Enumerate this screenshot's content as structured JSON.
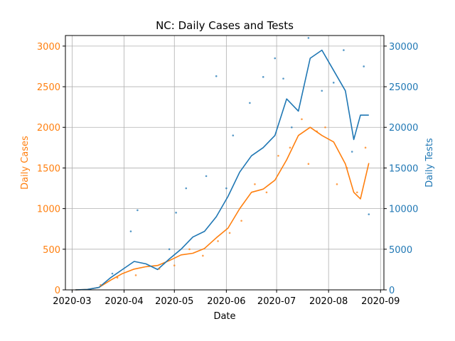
{
  "chart_data": {
    "type": "line",
    "title": "NC: Daily Cases and Tests",
    "xlabel": "Date",
    "ylabel_left": "Daily Cases",
    "ylabel_right": "Daily Tests",
    "grid": true,
    "xlim": [
      "2020-02-26",
      "2020-09-03"
    ],
    "ylim_left": [
      0,
      3130
    ],
    "ylim_right": [
      0,
      31300
    ],
    "x_ticks": [
      "2020-03",
      "2020-04",
      "2020-05",
      "2020-06",
      "2020-07",
      "2020-08",
      "2020-09"
    ],
    "y_ticks_left": [
      "0",
      "500",
      "1000",
      "1500",
      "2000",
      "2500",
      "3000"
    ],
    "y_ticks_right": [
      "0",
      "5000",
      "10000",
      "15000",
      "20000",
      "25000",
      "30000"
    ],
    "colors": {
      "cases": "#ff7f0e",
      "tests": "#1f77b4",
      "grid": "#b0b0b0"
    },
    "series": [
      {
        "axis": "left",
        "style": "line",
        "x": [
          "2020-03-03",
          "2020-03-10",
          "2020-03-17",
          "2020-03-24",
          "2020-03-31",
          "2020-04-07",
          "2020-04-14",
          "2020-04-21",
          "2020-04-28",
          "2020-05-05",
          "2020-05-12",
          "2020-05-19",
          "2020-05-26",
          "2020-06-02",
          "2020-06-09",
          "2020-06-16",
          "2020-06-23",
          "2020-06-30",
          "2020-07-07",
          "2020-07-14",
          "2020-07-21",
          "2020-07-28",
          "2020-08-04",
          "2020-08-11",
          "2020-08-16",
          "2020-08-20",
          "2020-08-25"
        ],
        "values": [
          0,
          5,
          30,
          120,
          200,
          255,
          285,
          300,
          360,
          430,
          450,
          510,
          640,
          760,
          1000,
          1200,
          1240,
          1350,
          1600,
          1900,
          2000,
          1900,
          1820,
          1550,
          1200,
          1120,
          1560
        ]
      },
      {
        "axis": "right",
        "style": "line",
        "x": [
          "2020-03-03",
          "2020-03-10",
          "2020-03-17",
          "2020-03-24",
          "2020-03-31",
          "2020-04-07",
          "2020-04-14",
          "2020-04-21",
          "2020-04-28",
          "2020-05-05",
          "2020-05-12",
          "2020-05-19",
          "2020-05-26",
          "2020-06-02",
          "2020-06-09",
          "2020-06-16",
          "2020-06-23",
          "2020-06-30",
          "2020-07-07",
          "2020-07-14",
          "2020-07-21",
          "2020-07-28",
          "2020-08-04",
          "2020-08-11",
          "2020-08-16",
          "2020-08-20",
          "2020-08-25"
        ],
        "values": [
          0,
          50,
          300,
          1500,
          2500,
          3500,
          3200,
          2500,
          3800,
          5000,
          6500,
          7200,
          9000,
          11500,
          14500,
          16500,
          17500,
          19000,
          23500,
          22000,
          28500,
          29500,
          27000,
          24500,
          18500,
          21500,
          21500
        ]
      },
      {
        "axis": "left",
        "style": "scatter",
        "x": [
          "2020-03-18",
          "2020-03-28",
          "2020-04-08",
          "2020-04-22",
          "2020-05-01",
          "2020-05-10",
          "2020-05-18",
          "2020-05-27",
          "2020-06-03",
          "2020-06-10",
          "2020-06-18",
          "2020-06-25",
          "2020-07-02",
          "2020-07-09",
          "2020-07-16",
          "2020-07-20",
          "2020-07-25",
          "2020-07-30",
          "2020-08-06",
          "2020-08-12",
          "2020-08-18",
          "2020-08-23"
        ],
        "values": [
          60,
          150,
          180,
          260,
          300,
          500,
          420,
          600,
          700,
          850,
          1300,
          1200,
          1650,
          1750,
          2100,
          1550,
          1950,
          2000,
          1300,
          1500,
          1200,
          1750
        ]
      },
      {
        "axis": "right",
        "style": "scatter",
        "x": [
          "2020-03-25",
          "2020-04-05",
          "2020-04-09",
          "2020-04-28",
          "2020-05-02",
          "2020-05-08",
          "2020-05-20",
          "2020-05-26",
          "2020-06-01",
          "2020-06-05",
          "2020-06-15",
          "2020-06-23",
          "2020-06-30",
          "2020-07-05",
          "2020-07-10",
          "2020-07-20",
          "2020-07-28",
          "2020-08-04",
          "2020-08-10",
          "2020-08-15",
          "2020-08-22",
          "2020-08-25"
        ],
        "values": [
          2000,
          7200,
          9800,
          5000,
          9500,
          12500,
          14000,
          26300,
          12500,
          19000,
          23000,
          26200,
          28500,
          26000,
          20000,
          31000,
          24500,
          25500,
          29500,
          17000,
          27500,
          9300
        ]
      }
    ]
  }
}
